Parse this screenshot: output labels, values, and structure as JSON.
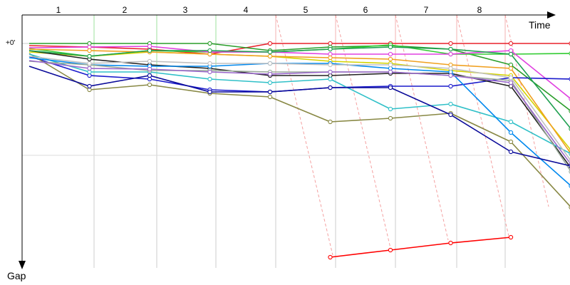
{
  "chart_data": {
    "type": "line",
    "xlabel": "Time",
    "ylabel": "Gap",
    "zero_label": "+0'",
    "lap_labels": [
      "1",
      "2",
      "3",
      "4",
      "5",
      "6",
      "7",
      "8"
    ],
    "x": [
      0,
      1,
      2,
      3,
      4,
      5,
      6,
      7,
      8,
      9
    ],
    "grid": true,
    "series": [
      {
        "color": "#e8202a",
        "values": [
          3,
          5,
          8,
          15,
          0,
          0,
          0,
          0,
          0,
          0
        ]
      },
      {
        "color": "#ff0000",
        "values": [
          null,
          null,
          null,
          null,
          null,
          300,
          290,
          280,
          272,
          null
        ]
      },
      {
        "color": "#2a9d2a",
        "values": [
          0,
          0,
          0,
          0,
          10,
          5,
          3,
          8,
          30,
          95
        ]
      },
      {
        "color": "#33cc33",
        "values": [
          7,
          18,
          10,
          12,
          12,
          8,
          2,
          15,
          15,
          14
        ]
      },
      {
        "color": "#e040e0",
        "values": [
          6,
          5,
          4,
          12,
          12,
          15,
          15,
          15,
          10,
          78
        ]
      },
      {
        "color": "#d4d400",
        "values": [
          12,
          18,
          12,
          15,
          18,
          25,
          28,
          38,
          45,
          150
        ]
      },
      {
        "color": "#f0a020",
        "values": [
          8,
          10,
          12,
          15,
          18,
          20,
          22,
          30,
          35,
          155
        ]
      },
      {
        "color": "#1a1acc",
        "values": [
          18,
          45,
          50,
          65,
          68,
          62,
          60,
          60,
          48,
          50
        ]
      },
      {
        "color": "#222222",
        "values": [
          10,
          22,
          30,
          35,
          45,
          45,
          42,
          42,
          60,
          175
        ]
      },
      {
        "color": "#888844",
        "values": [
          14,
          65,
          58,
          70,
          75,
          110,
          105,
          98,
          138,
          230
        ]
      },
      {
        "color": "#30c0c8",
        "values": [
          15,
          40,
          40,
          50,
          55,
          50,
          92,
          85,
          110,
          155
        ]
      },
      {
        "color": "#0088ee",
        "values": [
          20,
          30,
          32,
          32,
          28,
          28,
          35,
          40,
          125,
          200
        ]
      },
      {
        "color": "#99aa99",
        "values": [
          25,
          30,
          38,
          38,
          40,
          40,
          40,
          45,
          52,
          180
        ]
      },
      {
        "color": "#9966cc",
        "values": [
          24,
          35,
          36,
          40,
          43,
          40,
          40,
          45,
          55,
          170
        ]
      },
      {
        "color": "#0a0a99",
        "values": [
          32,
          60,
          45,
          68,
          68,
          62,
          62,
          100,
          152,
          172
        ]
      },
      {
        "color": "#c0c0c0",
        "values": [
          18,
          28,
          25,
          28,
          28,
          30,
          30,
          35,
          48,
          165
        ]
      },
      {
        "color": "#1fa050",
        "values": [
          10,
          18,
          10,
          10,
          12,
          8,
          5,
          8,
          15,
          120
        ]
      }
    ]
  }
}
